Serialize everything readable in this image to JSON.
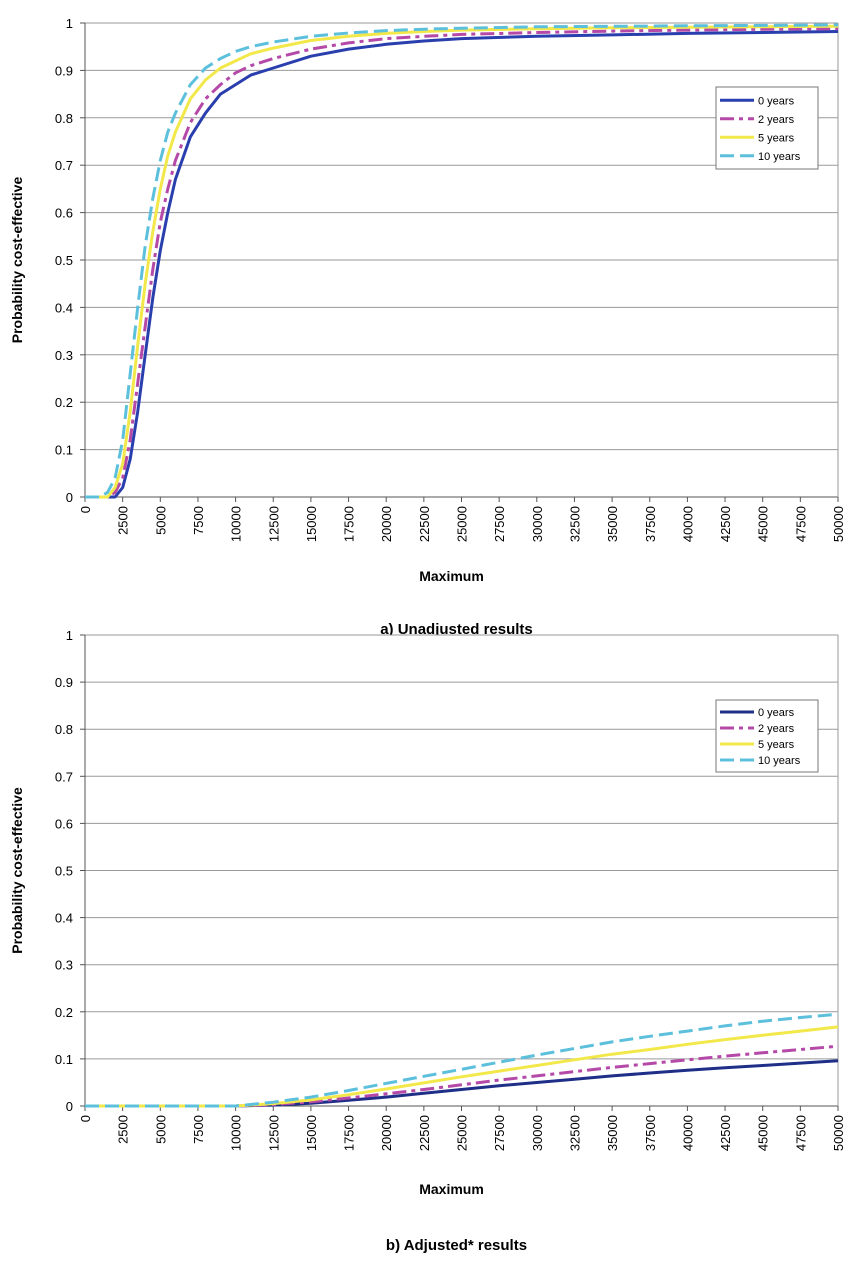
{
  "chart_data": [
    {
      "type": "line",
      "caption": "a) Unadjusted results",
      "xlabel": "Maximum",
      "ylabel": "Probability cost-effective",
      "xlim": [
        0,
        50000
      ],
      "ylim": [
        0,
        1
      ],
      "x_ticks": [
        "0",
        "2500",
        "5000",
        "7500",
        "10000",
        "12500",
        "15000",
        "17500",
        "20000",
        "22500",
        "25000",
        "27500",
        "30000",
        "32500",
        "35000",
        "37500",
        "40000",
        "42500",
        "45000",
        "47500",
        "50000"
      ],
      "y_ticks": [
        "0",
        "0.1",
        "0.2",
        "0.3",
        "0.4",
        "0.5",
        "0.6",
        "0.7",
        "0.8",
        "0.9",
        "1"
      ],
      "grid": true,
      "legend_position": "top-right",
      "series": [
        {
          "name": "0 years",
          "color": "#2a3fae",
          "dash": "solid",
          "x": [
            0,
            1000,
            1500,
            2000,
            2500,
            3000,
            3500,
            4000,
            4500,
            5000,
            5500,
            6000,
            7000,
            8000,
            9000,
            10000,
            11000,
            12500,
            15000,
            17500,
            20000,
            22500,
            25000,
            30000,
            35000,
            40000,
            45000,
            50000
          ],
          "y": [
            0,
            0,
            0,
            0,
            0.02,
            0.08,
            0.18,
            0.3,
            0.42,
            0.52,
            0.6,
            0.67,
            0.76,
            0.81,
            0.85,
            0.87,
            0.89,
            0.905,
            0.93,
            0.945,
            0.955,
            0.962,
            0.967,
            0.972,
            0.975,
            0.978,
            0.98,
            0.982
          ]
        },
        {
          "name": "2 years",
          "color": "#b549a8",
          "dash": "dashdot",
          "x": [
            0,
            1000,
            1500,
            2000,
            2500,
            3000,
            3500,
            4000,
            4500,
            5000,
            5500,
            6000,
            7000,
            8000,
            9000,
            10000,
            11000,
            12500,
            15000,
            17500,
            20000,
            22500,
            25000,
            30000,
            35000,
            40000,
            45000,
            50000
          ],
          "y": [
            0,
            0,
            0,
            0.01,
            0.04,
            0.12,
            0.24,
            0.36,
            0.48,
            0.58,
            0.65,
            0.71,
            0.79,
            0.84,
            0.87,
            0.895,
            0.91,
            0.925,
            0.945,
            0.958,
            0.967,
            0.972,
            0.976,
            0.98,
            0.983,
            0.985,
            0.987,
            0.988
          ]
        },
        {
          "name": "5 years",
          "color": "#f2e84a",
          "dash": "solid",
          "x": [
            0,
            1000,
            1500,
            2000,
            2500,
            3000,
            3500,
            4000,
            4500,
            5000,
            5500,
            6000,
            7000,
            8000,
            9000,
            10000,
            11000,
            12500,
            15000,
            17500,
            20000,
            22500,
            25000,
            30000,
            35000,
            40000,
            45000,
            50000
          ],
          "y": [
            0,
            0,
            0,
            0.02,
            0.07,
            0.18,
            0.32,
            0.45,
            0.56,
            0.65,
            0.72,
            0.77,
            0.84,
            0.88,
            0.905,
            0.92,
            0.935,
            0.947,
            0.963,
            0.972,
            0.978,
            0.982,
            0.985,
            0.988,
            0.99,
            0.991,
            0.992,
            0.993
          ]
        },
        {
          "name": "10 years",
          "color": "#5cc0dc",
          "dash": "dashed",
          "x": [
            0,
            1000,
            1500,
            2000,
            2500,
            3000,
            3500,
            4000,
            4500,
            5000,
            5500,
            6000,
            7000,
            8000,
            9000,
            10000,
            11000,
            12500,
            15000,
            17500,
            20000,
            22500,
            25000,
            30000,
            35000,
            40000,
            45000,
            50000
          ],
          "y": [
            0,
            0,
            0.01,
            0.04,
            0.12,
            0.26,
            0.4,
            0.53,
            0.63,
            0.71,
            0.77,
            0.81,
            0.87,
            0.905,
            0.925,
            0.94,
            0.95,
            0.96,
            0.972,
            0.979,
            0.984,
            0.987,
            0.989,
            0.992,
            0.993,
            0.994,
            0.995,
            0.996
          ]
        }
      ]
    },
    {
      "type": "line",
      "caption": "b) Adjusted* results",
      "xlabel": "Maximum",
      "ylabel": "Probability cost-effective",
      "xlim": [
        0,
        50000
      ],
      "ylim": [
        0,
        1
      ],
      "x_ticks": [
        "0",
        "2500",
        "5000",
        "7500",
        "10000",
        "12500",
        "15000",
        "17500",
        "20000",
        "22500",
        "25000",
        "27500",
        "30000",
        "32500",
        "35000",
        "37500",
        "40000",
        "42500",
        "45000",
        "47500",
        "50000"
      ],
      "y_ticks": [
        "0",
        "0.1",
        "0.2",
        "0.3",
        "0.4",
        "0.5",
        "0.6",
        "0.7",
        "0.8",
        "0.9",
        "1"
      ],
      "grid": true,
      "legend_position": "top-right",
      "series": [
        {
          "name": "0 years",
          "color": "#1f2f88",
          "dash": "solid",
          "x": [
            0,
            5000,
            10000,
            12500,
            15000,
            17500,
            20000,
            22500,
            25000,
            27500,
            30000,
            32500,
            35000,
            37500,
            40000,
            42500,
            45000,
            47500,
            50000
          ],
          "y": [
            0,
            0,
            0,
            0.002,
            0.006,
            0.012,
            0.019,
            0.027,
            0.035,
            0.043,
            0.05,
            0.057,
            0.064,
            0.07,
            0.076,
            0.081,
            0.086,
            0.091,
            0.096
          ]
        },
        {
          "name": "2 years",
          "color": "#b549a8",
          "dash": "dashdot",
          "x": [
            0,
            5000,
            10000,
            12500,
            15000,
            17500,
            20000,
            22500,
            25000,
            27500,
            30000,
            32500,
            35000,
            37500,
            40000,
            42500,
            45000,
            47500,
            50000
          ],
          "y": [
            0,
            0,
            0,
            0.003,
            0.009,
            0.017,
            0.026,
            0.035,
            0.045,
            0.055,
            0.064,
            0.073,
            0.082,
            0.09,
            0.098,
            0.106,
            0.113,
            0.12,
            0.127
          ]
        },
        {
          "name": "5 years",
          "color": "#f2e84a",
          "dash": "solid",
          "x": [
            0,
            5000,
            10000,
            12500,
            15000,
            17500,
            20000,
            22500,
            25000,
            27500,
            30000,
            32500,
            35000,
            37500,
            40000,
            42500,
            45000,
            47500,
            50000
          ],
          "y": [
            0,
            0,
            0,
            0.005,
            0.013,
            0.024,
            0.036,
            0.049,
            0.062,
            0.074,
            0.086,
            0.098,
            0.11,
            0.12,
            0.131,
            0.141,
            0.15,
            0.159,
            0.168
          ]
        },
        {
          "name": "10 years",
          "color": "#5cc0dc",
          "dash": "dashed",
          "x": [
            0,
            5000,
            10000,
            12500,
            15000,
            17500,
            20000,
            22500,
            25000,
            27500,
            30000,
            32500,
            35000,
            37500,
            40000,
            42500,
            45000,
            47500,
            50000
          ],
          "y": [
            0,
            0,
            0,
            0.008,
            0.019,
            0.033,
            0.048,
            0.063,
            0.078,
            0.093,
            0.108,
            0.122,
            0.136,
            0.148,
            0.159,
            0.17,
            0.18,
            0.188,
            0.195
          ]
        }
      ]
    }
  ]
}
